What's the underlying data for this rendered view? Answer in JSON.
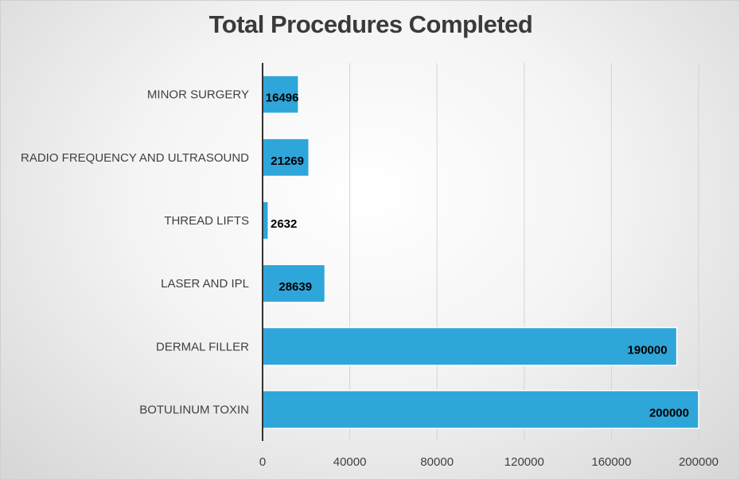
{
  "chart_data": {
    "type": "bar",
    "orientation": "horizontal",
    "title": "Total Procedures Completed",
    "xlabel": "",
    "ylabel": "",
    "categories": [
      "MINOR SURGERY",
      "RADIO FREQUENCY AND ULTRASOUND",
      "THREAD LIFTS",
      "LASER AND IPL",
      "DERMAL FILLER",
      "BOTULINUM TOXIN"
    ],
    "values": [
      16496,
      21269,
      2632,
      28639,
      190000,
      200000
    ],
    "data_labels": [
      "16496",
      "21269",
      "2632",
      "28639",
      "190000",
      "200000"
    ],
    "xlim": [
      0,
      200000
    ],
    "x_ticks": [
      0,
      40000,
      80000,
      120000,
      160000,
      200000
    ],
    "x_tick_labels": [
      "0",
      "40000",
      "80000",
      "120000",
      "160000",
      "200000"
    ],
    "grid": "vertical",
    "legend": "none",
    "colors": {
      "bar": "#2ea6d9",
      "bar_edge": "#ffffff",
      "gridline": "#d4d4d4",
      "axis": "#333333",
      "title": "#3a3a3a",
      "text": "#404040"
    }
  }
}
